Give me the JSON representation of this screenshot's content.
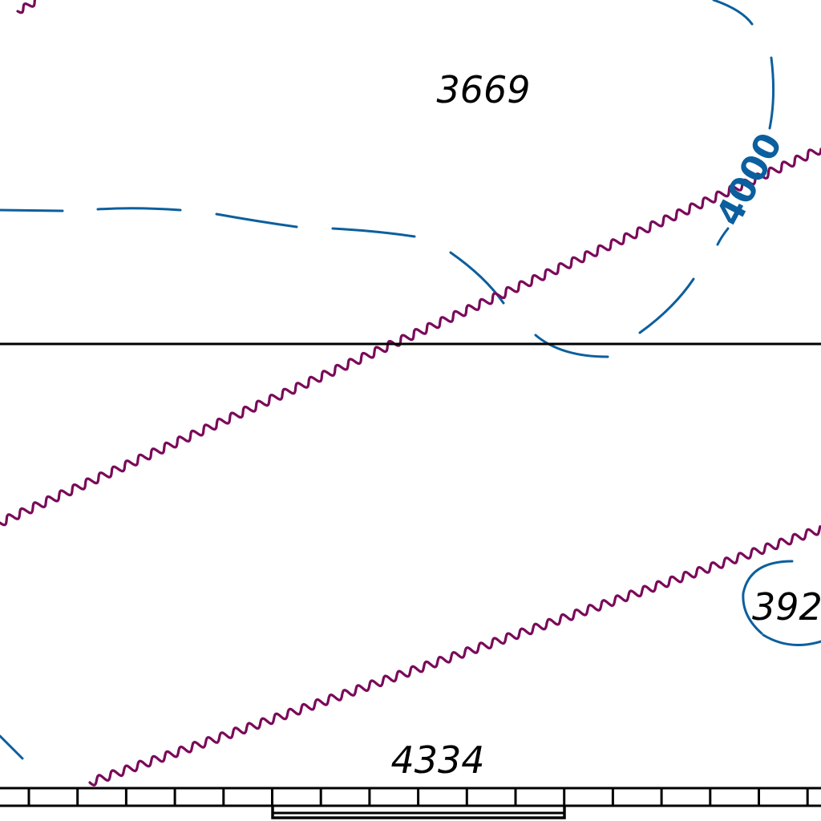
{
  "colors": {
    "contour": "#0b5f9e",
    "wavy_line": "#7a0a5a",
    "line": "#000000",
    "background": "#ffffff"
  },
  "contours": {
    "label_4000": "4000"
  },
  "spot_heights": {
    "h3669": "3669",
    "h4334": "4334",
    "h392": "392"
  },
  "features": {
    "wavy_lines": 3,
    "horizontal_line": 1,
    "scale_bar": 1
  }
}
